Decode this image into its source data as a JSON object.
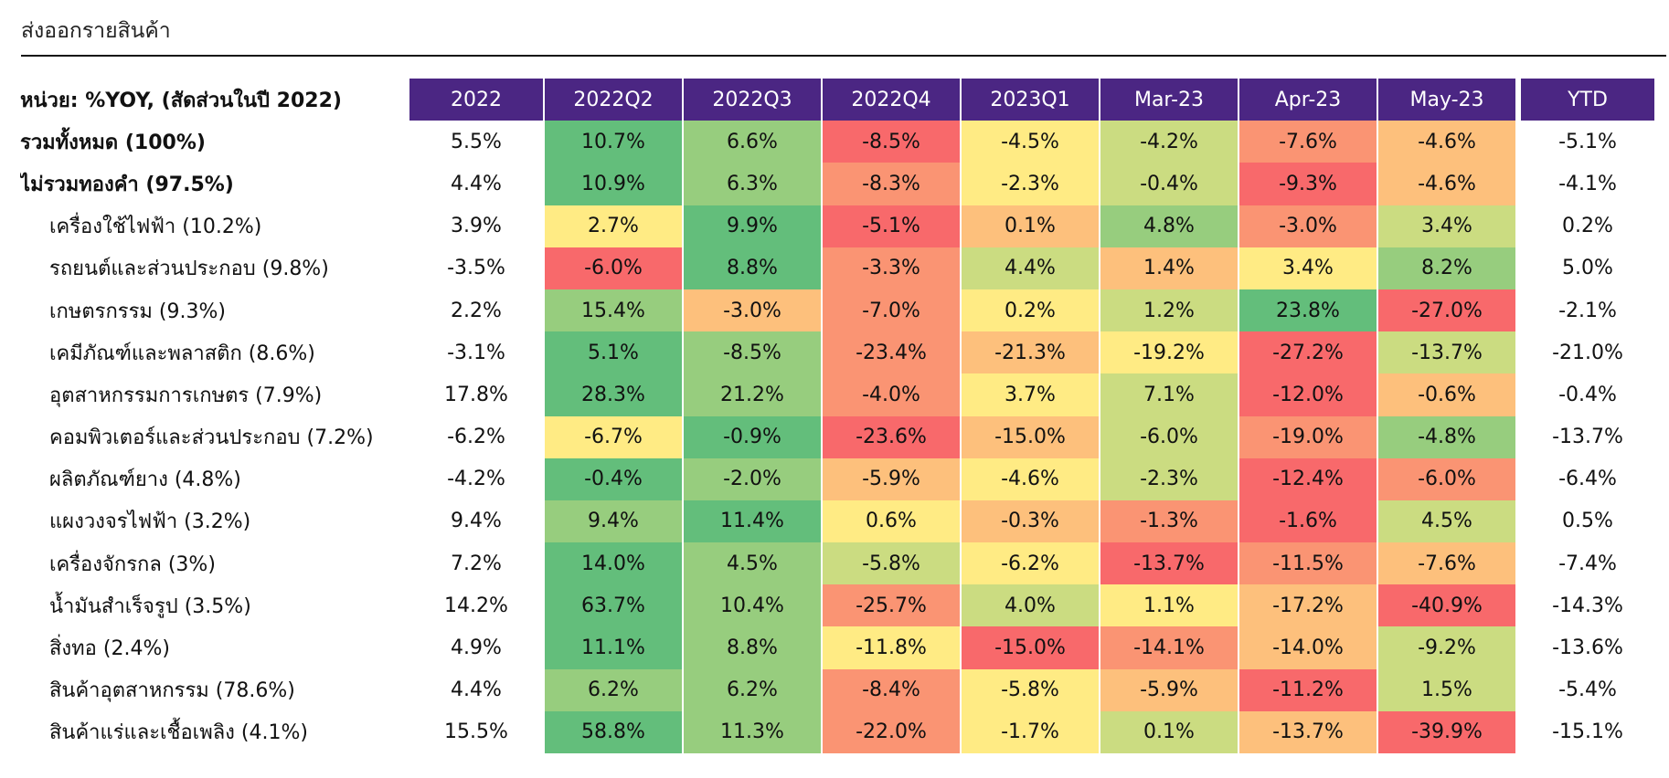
{
  "title": "ส่งออกรายสินค้า",
  "table": {
    "unit_label": "หน่วย: %YOY, (สัดส่วนในปี 2022)",
    "columns": [
      "2022",
      "2022Q2",
      "2022Q3",
      "2022Q4",
      "2023Q1",
      "Mar-23",
      "Apr-23",
      "May-23",
      "YTD"
    ],
    "rows": [
      {
        "label": "รวมทั้งหมด (100%)",
        "bold": true,
        "values": [
          "5.5%",
          "10.7%",
          "6.6%",
          "-8.5%",
          "-4.5%",
          "-4.2%",
          "-7.6%",
          "-4.6%",
          "-5.1%"
        ]
      },
      {
        "label": "ไม่รวมทองคำ (97.5%)",
        "bold": true,
        "values": [
          "4.4%",
          "10.9%",
          "6.3%",
          "-8.3%",
          "-2.3%",
          "-0.4%",
          "-9.3%",
          "-4.6%",
          "-4.1%"
        ]
      },
      {
        "label": "เครื่องใช้ไฟฟ้า (10.2%)",
        "bold": false,
        "values": [
          "3.9%",
          "2.7%",
          "9.9%",
          "-5.1%",
          "0.1%",
          "4.8%",
          "-3.0%",
          "3.4%",
          "0.2%"
        ]
      },
      {
        "label": "รถยนต์และส่วนประกอบ (9.8%)",
        "bold": false,
        "values": [
          "-3.5%",
          "-6.0%",
          "8.8%",
          "-3.3%",
          "4.4%",
          "1.4%",
          "3.4%",
          "8.2%",
          "5.0%"
        ]
      },
      {
        "label": "เกษตรกรรม (9.3%)",
        "bold": false,
        "values": [
          "2.2%",
          "15.4%",
          "-3.0%",
          "-7.0%",
          "0.2%",
          "1.2%",
          "23.8%",
          "-27.0%",
          "-2.1%"
        ]
      },
      {
        "label": "เคมีภัณฑ์และพลาสติก (8.6%)",
        "bold": false,
        "values": [
          "-3.1%",
          "5.1%",
          "-8.5%",
          "-23.4%",
          "-21.3%",
          "-19.2%",
          "-27.2%",
          "-13.7%",
          "-21.0%"
        ]
      },
      {
        "label": "อุตสาหกรรมการเกษตร (7.9%)",
        "bold": false,
        "values": [
          "17.8%",
          "28.3%",
          "21.2%",
          "-4.0%",
          "3.7%",
          "7.1%",
          "-12.0%",
          "-0.6%",
          "-0.4%"
        ]
      },
      {
        "label": "คอมพิวเตอร์และส่วนประกอบ (7.2%)",
        "bold": false,
        "values": [
          "-6.2%",
          "-6.7%",
          "-0.9%",
          "-23.6%",
          "-15.0%",
          "-6.0%",
          "-19.0%",
          "-4.8%",
          "-13.7%"
        ]
      },
      {
        "label": "ผลิตภัณฑ์ยาง (4.8%)",
        "bold": false,
        "values": [
          "-4.2%",
          "-0.4%",
          "-2.0%",
          "-5.9%",
          "-4.6%",
          "-2.3%",
          "-12.4%",
          "-6.0%",
          "-6.4%"
        ]
      },
      {
        "label": "แผงวงจรไฟฟ้า (3.2%)",
        "bold": false,
        "values": [
          "9.4%",
          "9.4%",
          "11.4%",
          "0.6%",
          "-0.3%",
          "-1.3%",
          "-1.6%",
          "4.5%",
          "0.5%"
        ]
      },
      {
        "label": "เครื่องจักรกล (3%)",
        "bold": false,
        "values": [
          "7.2%",
          "14.0%",
          "4.5%",
          "-5.8%",
          "-6.2%",
          "-13.7%",
          "-11.5%",
          "-7.6%",
          "-7.4%"
        ]
      },
      {
        "label": "น้ำมันสำเร็จรูป (3.5%)",
        "bold": false,
        "values": [
          "14.2%",
          "63.7%",
          "10.4%",
          "-25.7%",
          "4.0%",
          "1.1%",
          "-17.2%",
          "-40.9%",
          "-14.3%"
        ]
      },
      {
        "label": "สิ่งทอ (2.4%)",
        "bold": false,
        "values": [
          "4.9%",
          "11.1%",
          "8.8%",
          "-11.8%",
          "-15.0%",
          "-14.1%",
          "-14.0%",
          "-9.2%",
          "-13.6%"
        ]
      },
      {
        "label": "สินค้าอุตสาหกรรม (78.6%)",
        "bold": false,
        "values": [
          "4.4%",
          "6.2%",
          "6.2%",
          "-8.4%",
          "-5.8%",
          "-5.9%",
          "-11.2%",
          "1.5%",
          "-5.4%"
        ]
      },
      {
        "label": "สินค้าแร่และเชื้อเพลิง (4.1%)",
        "bold": false,
        "values": [
          "15.5%",
          "58.8%",
          "11.3%",
          "-22.0%",
          "-1.7%",
          "0.1%",
          "-13.7%",
          "-39.9%",
          "-15.1%"
        ]
      }
    ]
  },
  "colors": {
    "header_bg": "#4b2683",
    "heat_red": "#f8696b",
    "heat_yellow": "#ffeb84",
    "heat_green": "#63be7b"
  }
}
